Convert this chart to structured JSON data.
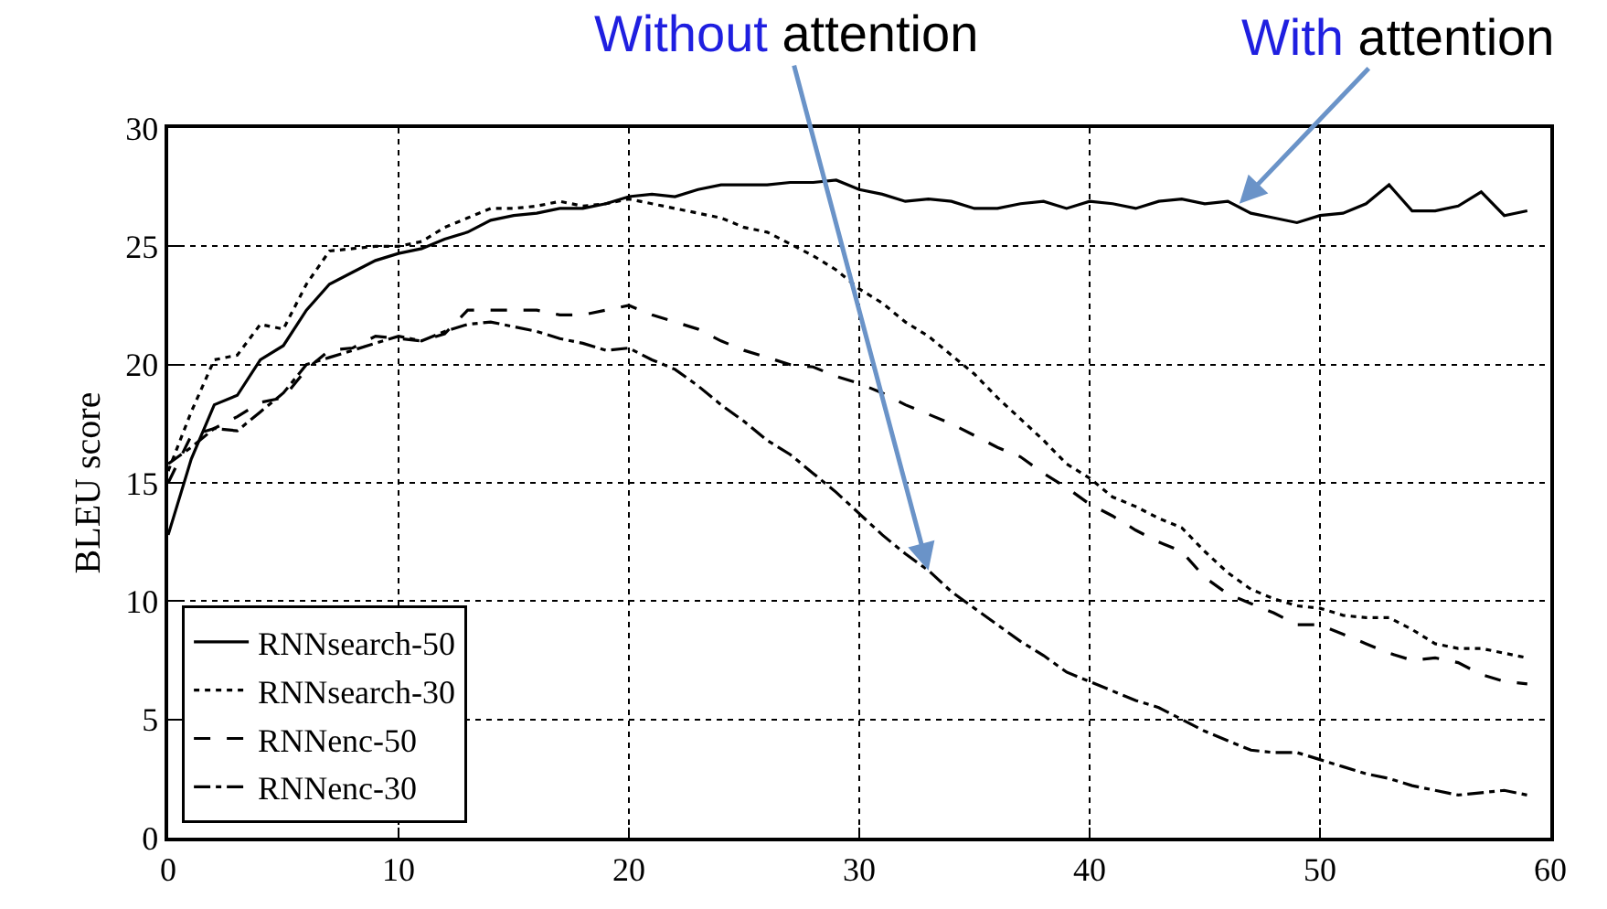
{
  "chart_data": {
    "type": "line",
    "ylabel": "BLEU score",
    "x": [
      0,
      1,
      2,
      3,
      4,
      5,
      6,
      7,
      8,
      9,
      10,
      11,
      12,
      13,
      14,
      15,
      16,
      17,
      18,
      19,
      20,
      21,
      22,
      23,
      24,
      25,
      26,
      27,
      28,
      29,
      30,
      31,
      32,
      33,
      34,
      35,
      36,
      37,
      38,
      39,
      40,
      41,
      42,
      43,
      44,
      45,
      46,
      47,
      48,
      49,
      50,
      51,
      52,
      53,
      54,
      55,
      56,
      57,
      58,
      59
    ],
    "xlim": [
      0,
      60
    ],
    "xticks": [
      0,
      10,
      20,
      30,
      40,
      50,
      60
    ],
    "ylim": [
      0,
      30
    ],
    "yticks": [
      0,
      5,
      10,
      15,
      20,
      25,
      30
    ],
    "grid": true,
    "legend": "bottom left",
    "marker": "none",
    "series": [
      {
        "name": "RNNsearch-50",
        "color": "#000000",
        "line_style": "solid",
        "values": [
          12.8,
          16,
          18.3,
          18.7,
          20.2,
          20.8,
          22.3,
          23.4,
          23.9,
          24.4,
          24.7,
          24.9,
          25.3,
          25.6,
          26.1,
          26.3,
          26.4,
          26.6,
          26.6,
          26.8,
          27.1,
          27.2,
          27.1,
          27.4,
          27.6,
          27.6,
          27.6,
          27.7,
          27.7,
          27.8,
          27.4,
          27.2,
          26.9,
          27.0,
          26.9,
          26.6,
          26.6,
          26.8,
          26.9,
          26.6,
          26.9,
          26.8,
          26.6,
          26.9,
          27.0,
          26.8,
          26.9,
          26.4,
          26.2,
          26.0,
          26.3,
          26.4,
          26.8,
          27.6,
          26.5,
          26.5,
          26.7,
          27.3,
          26.3,
          26.5
        ]
      },
      {
        "name": "RNNsearch-30",
        "color": "#000000",
        "line_style": "dotted",
        "values": [
          15.5,
          18,
          20.2,
          20.4,
          21.7,
          21.5,
          23.4,
          24.8,
          24.9,
          25,
          25,
          25.2,
          25.8,
          26.2,
          26.6,
          26.6,
          26.7,
          26.9,
          26.7,
          26.8,
          27.0,
          26.8,
          26.6,
          26.4,
          26.2,
          25.8,
          25.6,
          25.1,
          24.6,
          24,
          23.2,
          22.6,
          21.8,
          21.2,
          20.4,
          19.6,
          18.6,
          17.7,
          16.8,
          15.8,
          15.2,
          14.4,
          14.0,
          13.5,
          13.1,
          12.1,
          11.2,
          10.5,
          10.1,
          9.8,
          9.7,
          9.4,
          9.3,
          9.3,
          8.8,
          8.2,
          8.0,
          8.0,
          7.8,
          7.6
        ]
      },
      {
        "name": "RNNenc-50",
        "color": "#000000",
        "line_style": "dashed",
        "values": [
          15,
          17,
          17.3,
          17.8,
          18.4,
          18.6,
          19.8,
          20.6,
          20.7,
          21.2,
          21.1,
          21.0,
          21.3,
          22.3,
          22.3,
          22.3,
          22.3,
          22.1,
          22.1,
          22.3,
          22.5,
          22.1,
          21.8,
          21.5,
          21.0,
          20.6,
          20.3,
          20.0,
          19.9,
          19.5,
          19.2,
          18.8,
          18.3,
          17.9,
          17.5,
          17.0,
          16.5,
          16.1,
          15.4,
          14.8,
          14.1,
          13.6,
          13.0,
          12.5,
          12.1,
          11.0,
          10.3,
          9.9,
          9.5,
          9.0,
          9.0,
          8.6,
          8.2,
          7.8,
          7.5,
          7.6,
          7.4,
          6.9,
          6.6,
          6.5
        ]
      },
      {
        "name": "RNNenc-30",
        "color": "#000000",
        "line_style": "dashdot",
        "values": [
          15.8,
          16.5,
          17.3,
          17.2,
          18.0,
          18.8,
          20.0,
          20.3,
          20.6,
          20.9,
          21.2,
          21.0,
          21.4,
          21.7,
          21.8,
          21.6,
          21.4,
          21.1,
          20.9,
          20.6,
          20.7,
          20.2,
          19.8,
          19.1,
          18.3,
          17.6,
          16.8,
          16.2,
          15.4,
          14.6,
          13.7,
          12.8,
          12.0,
          11.3,
          10.4,
          9.7,
          9.0,
          8.3,
          7.7,
          7.0,
          6.6,
          6.2,
          5.8,
          5.5,
          5.0,
          4.5,
          4.1,
          3.7,
          3.6,
          3.6,
          3.3,
          3.0,
          2.7,
          2.5,
          2.2,
          2.0,
          1.8,
          1.9,
          2.0,
          1.8
        ]
      }
    ],
    "annotations": [
      {
        "text": "Without attention",
        "x": 33,
        "y": 11.3
      },
      {
        "text": "With attention",
        "x": 46.5,
        "y": 26.8
      }
    ]
  }
}
